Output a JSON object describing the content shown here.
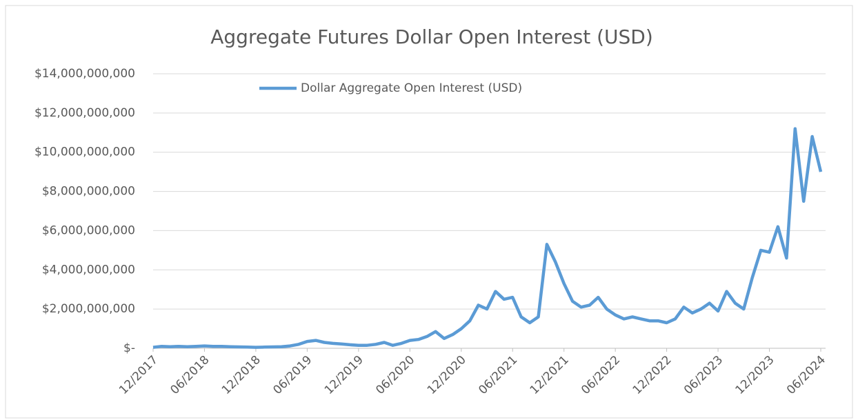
{
  "chart_data": {
    "type": "line",
    "title": "Aggregate Futures Dollar Open Interest (USD)",
    "x": [
      "12/2017",
      "01/2018",
      "02/2018",
      "03/2018",
      "04/2018",
      "05/2018",
      "06/2018",
      "07/2018",
      "08/2018",
      "09/2018",
      "10/2018",
      "11/2018",
      "12/2018",
      "01/2019",
      "02/2019",
      "03/2019",
      "04/2019",
      "05/2019",
      "06/2019",
      "07/2019",
      "08/2019",
      "09/2019",
      "10/2019",
      "11/2019",
      "12/2019",
      "01/2020",
      "02/2020",
      "03/2020",
      "04/2020",
      "05/2020",
      "06/2020",
      "07/2020",
      "08/2020",
      "09/2020",
      "10/2020",
      "11/2020",
      "12/2020",
      "01/2021",
      "02/2021",
      "03/2021",
      "04/2021",
      "05/2021",
      "06/2021",
      "07/2021",
      "08/2021",
      "09/2021",
      "10/2021",
      "11/2021",
      "12/2021",
      "01/2022",
      "02/2022",
      "03/2022",
      "04/2022",
      "05/2022",
      "06/2022",
      "07/2022",
      "08/2022",
      "09/2022",
      "10/2022",
      "11/2022",
      "12/2022",
      "01/2023",
      "02/2023",
      "03/2023",
      "04/2023",
      "05/2023",
      "06/2023",
      "07/2023",
      "08/2023",
      "09/2023",
      "10/2023",
      "11/2023",
      "12/2023",
      "01/2024",
      "02/2024",
      "03/2024",
      "04/2024",
      "05/2024",
      "06/2024"
    ],
    "series": [
      {
        "name": "Dollar Aggregate Open Interest (USD)",
        "color": "#5b9bd5",
        "values": [
          50000000,
          100000000,
          80000000,
          100000000,
          80000000,
          100000000,
          120000000,
          100000000,
          100000000,
          80000000,
          70000000,
          60000000,
          50000000,
          60000000,
          70000000,
          80000000,
          120000000,
          200000000,
          350000000,
          400000000,
          300000000,
          250000000,
          220000000,
          180000000,
          150000000,
          150000000,
          200000000,
          300000000,
          150000000,
          250000000,
          400000000,
          450000000,
          600000000,
          850000000,
          500000000,
          700000000,
          1000000000,
          1400000000,
          2200000000,
          2000000000,
          2900000000,
          2500000000,
          2600000000,
          1600000000,
          1300000000,
          1600000000,
          5300000000,
          4400000000,
          3300000000,
          2400000000,
          2100000000,
          2200000000,
          2600000000,
          2000000000,
          1700000000,
          1500000000,
          1600000000,
          1500000000,
          1400000000,
          1400000000,
          1300000000,
          1500000000,
          2100000000,
          1800000000,
          2000000000,
          2300000000,
          1900000000,
          2900000000,
          2300000000,
          2000000000,
          3600000000,
          5000000000,
          4900000000,
          6200000000,
          4600000000,
          11200000000,
          7500000000,
          10800000000,
          9000000000
        ]
      }
    ],
    "xlim": [
      "12/2017",
      "06/2024"
    ],
    "xticks": [
      "12/2017",
      "06/2018",
      "12/2018",
      "06/2019",
      "12/2019",
      "06/2020",
      "12/2020",
      "06/2021",
      "12/2021",
      "06/2022",
      "12/2022",
      "06/2023",
      "12/2023",
      "06/2024"
    ],
    "ylim": [
      0,
      14000000000
    ],
    "yticks": [
      {
        "value": 0,
        "label": "$-"
      },
      {
        "value": 2000000000,
        "label": "$2,000,000,000"
      },
      {
        "value": 4000000000,
        "label": "$4,000,000,000"
      },
      {
        "value": 6000000000,
        "label": "$6,000,000,000"
      },
      {
        "value": 8000000000,
        "label": "$8,000,000,000"
      },
      {
        "value": 10000000000,
        "label": "$10,000,000,000"
      },
      {
        "value": 12000000000,
        "label": "$12,000,000,000"
      },
      {
        "value": 14000000000,
        "label": "$14,000,000,000"
      }
    ],
    "grid": true,
    "legend": "top"
  }
}
